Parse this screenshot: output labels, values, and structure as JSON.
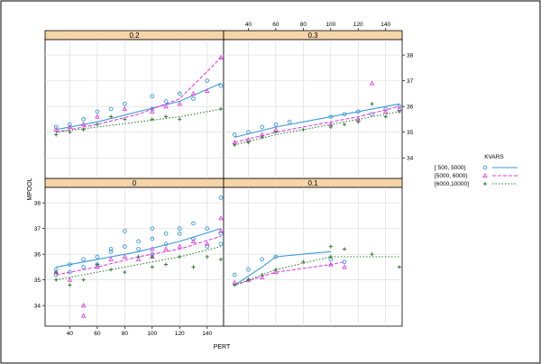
{
  "chart_data": {
    "type": "scatter",
    "layout": "trellis-2x2",
    "xlabel": "PERT",
    "ylabel": "MPOOL",
    "x_ticks": [
      40,
      60,
      80,
      100,
      120,
      140
    ],
    "y_ticks": [
      34,
      35,
      36,
      37,
      38
    ],
    "xlim": [
      22,
      152
    ],
    "ylim": [
      33.2,
      38.6
    ],
    "legend": {
      "title": "KVARS",
      "placement": "right",
      "entries": [
        {
          "label": "[ 500, 5000)",
          "color": "#3a9ad9",
          "marker": "circle",
          "line": "solid"
        },
        {
          "label": "[5000, 6000)",
          "color": "#e040e0",
          "marker": "triangle",
          "line": "dashed"
        },
        {
          "label": "[6000,10000]",
          "color": "#2e7d32",
          "marker": "plus",
          "line": "dotted"
        }
      ]
    },
    "panels": [
      {
        "strip": "0",
        "position": "bottom-left",
        "series": [
          {
            "name": "[ 500, 5000)",
            "x": [
              30,
              30,
              40,
              40,
              50,
              50,
              60,
              60,
              70,
              70,
              80,
              80,
              90,
              90,
              100,
              100,
              100,
              110,
              110,
              120,
              120,
              130,
              130,
              140,
              140,
              150,
              150,
              150
            ],
            "y": [
              35.4,
              35.2,
              35.6,
              35.3,
              35.8,
              35.5,
              35.9,
              35.6,
              36.2,
              36.1,
              36.3,
              36.9,
              36.5,
              36.2,
              37.0,
              36.6,
              36.0,
              36.8,
              36.4,
              37.0,
              36.8,
              37.2,
              36.6,
              37.0,
              36.3,
              38.2,
              36.8,
              36.4
            ],
            "fit": [
              [
                30,
                35.5
              ],
              [
                60,
                35.8
              ],
              [
                90,
                36.1
              ],
              [
                120,
                36.5
              ],
              [
                150,
                37.0
              ]
            ]
          },
          {
            "name": "[5000, 6000)",
            "x": [
              30,
              40,
              50,
              50,
              60,
              70,
              80,
              90,
              100,
              100,
              110,
              120,
              130,
              140,
              150,
              150
            ],
            "y": [
              35.3,
              35.0,
              33.6,
              34.0,
              35.5,
              35.8,
              35.9,
              35.8,
              36.2,
              35.9,
              36.2,
              36.3,
              36.5,
              36.4,
              37.4,
              36.9
            ],
            "fit": [
              [
                30,
                35.2
              ],
              [
                60,
                35.5
              ],
              [
                90,
                35.9
              ],
              [
                120,
                36.2
              ],
              [
                150,
                36.7
              ]
            ]
          },
          {
            "name": "[6000,10000]",
            "x": [
              30,
              30,
              40,
              50,
              60,
              70,
              80,
              90,
              100,
              100,
              110,
              120,
              130,
              140,
              150
            ],
            "y": [
              35.0,
              35.3,
              34.8,
              35.0,
              35.6,
              35.4,
              35.3,
              35.9,
              35.9,
              35.5,
              35.6,
              35.9,
              35.5,
              35.9,
              35.8
            ],
            "fit": [
              [
                30,
                35.0
              ],
              [
                60,
                35.3
              ],
              [
                90,
                35.6
              ],
              [
                120,
                35.9
              ],
              [
                150,
                36.3
              ]
            ]
          }
        ]
      },
      {
        "strip": "0.1",
        "position": "bottom-right",
        "series": [
          {
            "name": "[ 500, 5000)",
            "x": [
              30,
              40,
              50,
              60,
              100,
              110
            ],
            "y": [
              35.2,
              35.4,
              35.8,
              35.9,
              35.8,
              35.7
            ],
            "fit": [
              [
                30,
                34.8
              ],
              [
                50,
                35.5
              ],
              [
                60,
                35.9
              ],
              [
                80,
                36.0
              ],
              [
                100,
                36.1
              ]
            ]
          },
          {
            "name": "[5000, 6000)",
            "x": [
              30,
              40,
              50,
              60,
              100,
              110
            ],
            "y": [
              34.9,
              35.0,
              35.1,
              35.3,
              35.6,
              35.5
            ],
            "fit": [
              [
                30,
                34.8
              ],
              [
                60,
                35.3
              ],
              [
                100,
                35.6
              ],
              [
                110,
                35.7
              ]
            ]
          },
          {
            "name": "[6000,10000]",
            "x": [
              30,
              40,
              50,
              60,
              80,
              100,
              100,
              110,
              130,
              150
            ],
            "y": [
              34.8,
              35.0,
              35.2,
              35.4,
              35.7,
              36.3,
              35.9,
              36.2,
              36.0,
              35.5
            ],
            "fit": [
              [
                30,
                34.8
              ],
              [
                60,
                35.4
              ],
              [
                100,
                35.9
              ],
              [
                150,
                35.9
              ]
            ]
          }
        ]
      },
      {
        "strip": "0.2",
        "position": "top-left",
        "series": [
          {
            "name": "[ 500, 5000)",
            "x": [
              30,
              40,
              50,
              60,
              70,
              80,
              100,
              100,
              110,
              120,
              130,
              140,
              150
            ],
            "y": [
              35.2,
              35.3,
              35.5,
              35.8,
              35.9,
              36.1,
              36.4,
              35.9,
              36.2,
              36.5,
              36.3,
              37.0,
              36.8
            ],
            "fit": [
              [
                30,
                35.1
              ],
              [
                60,
                35.4
              ],
              [
                90,
                35.8
              ],
              [
                120,
                36.2
              ],
              [
                150,
                36.9
              ]
            ]
          },
          {
            "name": "[5000, 6000)",
            "x": [
              30,
              40,
              50,
              60,
              80,
              100,
              110,
              120,
              130,
              140,
              150
            ],
            "y": [
              35.1,
              35.2,
              35.3,
              35.6,
              35.9,
              35.8,
              36.0,
              36.1,
              36.5,
              36.6,
              37.9
            ],
            "fit": [
              [
                30,
                35.0
              ],
              [
                60,
                35.3
              ],
              [
                90,
                35.7
              ],
              [
                120,
                36.3
              ],
              [
                150,
                37.9
              ]
            ]
          },
          {
            "name": "[6000,10000]",
            "x": [
              30,
              40,
              50,
              60,
              70,
              80,
              100,
              110,
              120,
              150
            ],
            "y": [
              34.9,
              35.0,
              35.1,
              35.3,
              35.6,
              35.5,
              35.5,
              35.6,
              35.5,
              35.9
            ],
            "fit": [
              [
                30,
                35.0
              ],
              [
                60,
                35.2
              ],
              [
                90,
                35.4
              ],
              [
                120,
                35.6
              ],
              [
                150,
                35.9
              ]
            ]
          }
        ]
      },
      {
        "strip": "0.3",
        "position": "top-right",
        "series": [
          {
            "name": "[ 500, 5000)",
            "x": [
              30,
              40,
              50,
              60,
              70,
              100,
              110,
              120,
              130,
              140,
              150
            ],
            "y": [
              34.9,
              35.0,
              35.2,
              35.3,
              35.4,
              35.6,
              35.7,
              35.8,
              35.7,
              35.9,
              36.0
            ],
            "fit": [
              [
                30,
                34.8
              ],
              [
                60,
                35.2
              ],
              [
                90,
                35.5
              ],
              [
                120,
                35.8
              ],
              [
                150,
                36.1
              ]
            ]
          },
          {
            "name": "[5000, 6000)",
            "x": [
              30,
              40,
              50,
              60,
              100,
              120,
              130,
              140,
              150
            ],
            "y": [
              34.6,
              34.7,
              34.9,
              35.1,
              35.3,
              35.5,
              36.9,
              35.8,
              35.9
            ],
            "fit": [
              [
                30,
                34.6
              ],
              [
                60,
                35.0
              ],
              [
                90,
                35.3
              ],
              [
                120,
                35.6
              ],
              [
                150,
                36.0
              ]
            ]
          },
          {
            "name": "[6000,10000]",
            "x": [
              30,
              40,
              50,
              60,
              80,
              100,
              110,
              120,
              130,
              140,
              150
            ],
            "y": [
              34.5,
              34.6,
              34.8,
              35.0,
              35.1,
              35.2,
              35.3,
              35.4,
              36.1,
              35.6,
              35.8
            ],
            "fit": [
              [
                30,
                34.5
              ],
              [
                60,
                34.9
              ],
              [
                90,
                35.2
              ],
              [
                120,
                35.5
              ],
              [
                150,
                35.8
              ]
            ]
          }
        ]
      }
    ]
  }
}
